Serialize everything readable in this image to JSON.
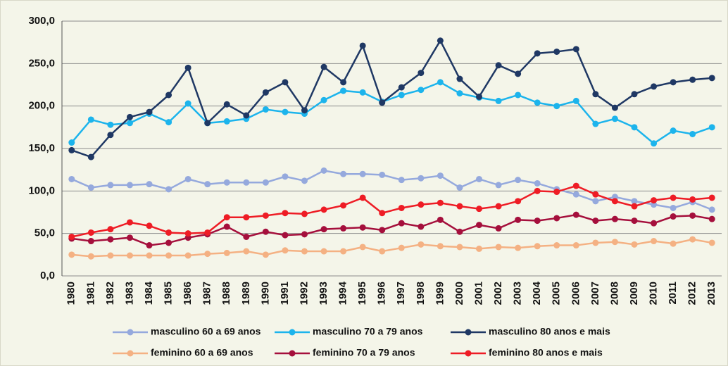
{
  "chart_data": {
    "type": "line",
    "categories": [
      "1980",
      "1981",
      "1982",
      "1983",
      "1984",
      "1985",
      "1986",
      "1987",
      "1988",
      "1989",
      "1990",
      "1991",
      "1992",
      "1993",
      "1994",
      "1995",
      "1996",
      "1997",
      "1998",
      "1999",
      "2000",
      "2001",
      "2002",
      "2003",
      "2004",
      "2005",
      "2006",
      "2007",
      "2008",
      "2009",
      "2010",
      "2011",
      "2012",
      "2013"
    ],
    "ylim": [
      0,
      300
    ],
    "yticks": [
      {
        "value": 0,
        "label": "0,0"
      },
      {
        "value": 50,
        "label": "50,0"
      },
      {
        "value": 100,
        "label": "100,0"
      },
      {
        "value": 150,
        "label": "150,0"
      },
      {
        "value": 200,
        "label": "200,0"
      },
      {
        "value": 250,
        "label": "250,0"
      },
      {
        "value": 300,
        "label": "300,0"
      }
    ],
    "grid": true,
    "series": [
      {
        "name": "masculino 60 a 69 anos",
        "color": "#95a9dd",
        "values": [
          114,
          104,
          107,
          107,
          108,
          102,
          114,
          108,
          110,
          110,
          110,
          117,
          112,
          124,
          120,
          120,
          119,
          113,
          115,
          118,
          104,
          114,
          107,
          113,
          109,
          102,
          96,
          88,
          93,
          88,
          84,
          80,
          87,
          78
        ]
      },
      {
        "name": "masculino 70 a 79 anos",
        "color": "#1cb4ec",
        "values": [
          157,
          184,
          178,
          180,
          191,
          181,
          203,
          180,
          182,
          185,
          196,
          193,
          191,
          207,
          218,
          216,
          205,
          213,
          219,
          228,
          215,
          210,
          206,
          213,
          204,
          200,
          206,
          179,
          185,
          175,
          156,
          171,
          167,
          175
        ]
      },
      {
        "name": "masculino 80 anos e mais",
        "color": "#1f3864",
        "values": [
          148,
          140,
          166,
          187,
          193,
          213,
          245,
          180,
          202,
          189,
          216,
          228,
          195,
          246,
          228,
          271,
          204,
          222,
          239,
          277,
          232,
          211,
          248,
          238,
          262,
          264,
          267,
          214,
          198,
          214,
          223,
          228,
          231,
          233
        ]
      },
      {
        "name": "feminino 60 a 69 anos",
        "color": "#f4b183",
        "values": [
          25,
          23,
          24,
          24,
          24,
          24,
          24,
          26,
          27,
          29,
          25,
          30,
          29,
          29,
          29,
          34,
          29,
          33,
          37,
          35,
          34,
          32,
          34,
          33,
          35,
          36,
          36,
          39,
          40,
          37,
          41,
          38,
          43,
          39
        ]
      },
      {
        "name": "feminino 70 a 79 anos",
        "color": "#a50f3c",
        "values": [
          44,
          41,
          43,
          45,
          36,
          39,
          45,
          49,
          58,
          46,
          52,
          48,
          49,
          55,
          56,
          57,
          54,
          62,
          58,
          66,
          52,
          60,
          56,
          66,
          65,
          68,
          72,
          65,
          67,
          65,
          62,
          70,
          71,
          67
        ]
      },
      {
        "name": "feminino 80 anos e mais",
        "color": "#ee1c25",
        "values": [
          46,
          51,
          55,
          63,
          59,
          51,
          50,
          51,
          69,
          69,
          71,
          74,
          73,
          78,
          83,
          92,
          74,
          80,
          84,
          86,
          82,
          79,
          82,
          88,
          100,
          99,
          106,
          96,
          88,
          82,
          89,
          92,
          90,
          92
        ]
      }
    ]
  }
}
